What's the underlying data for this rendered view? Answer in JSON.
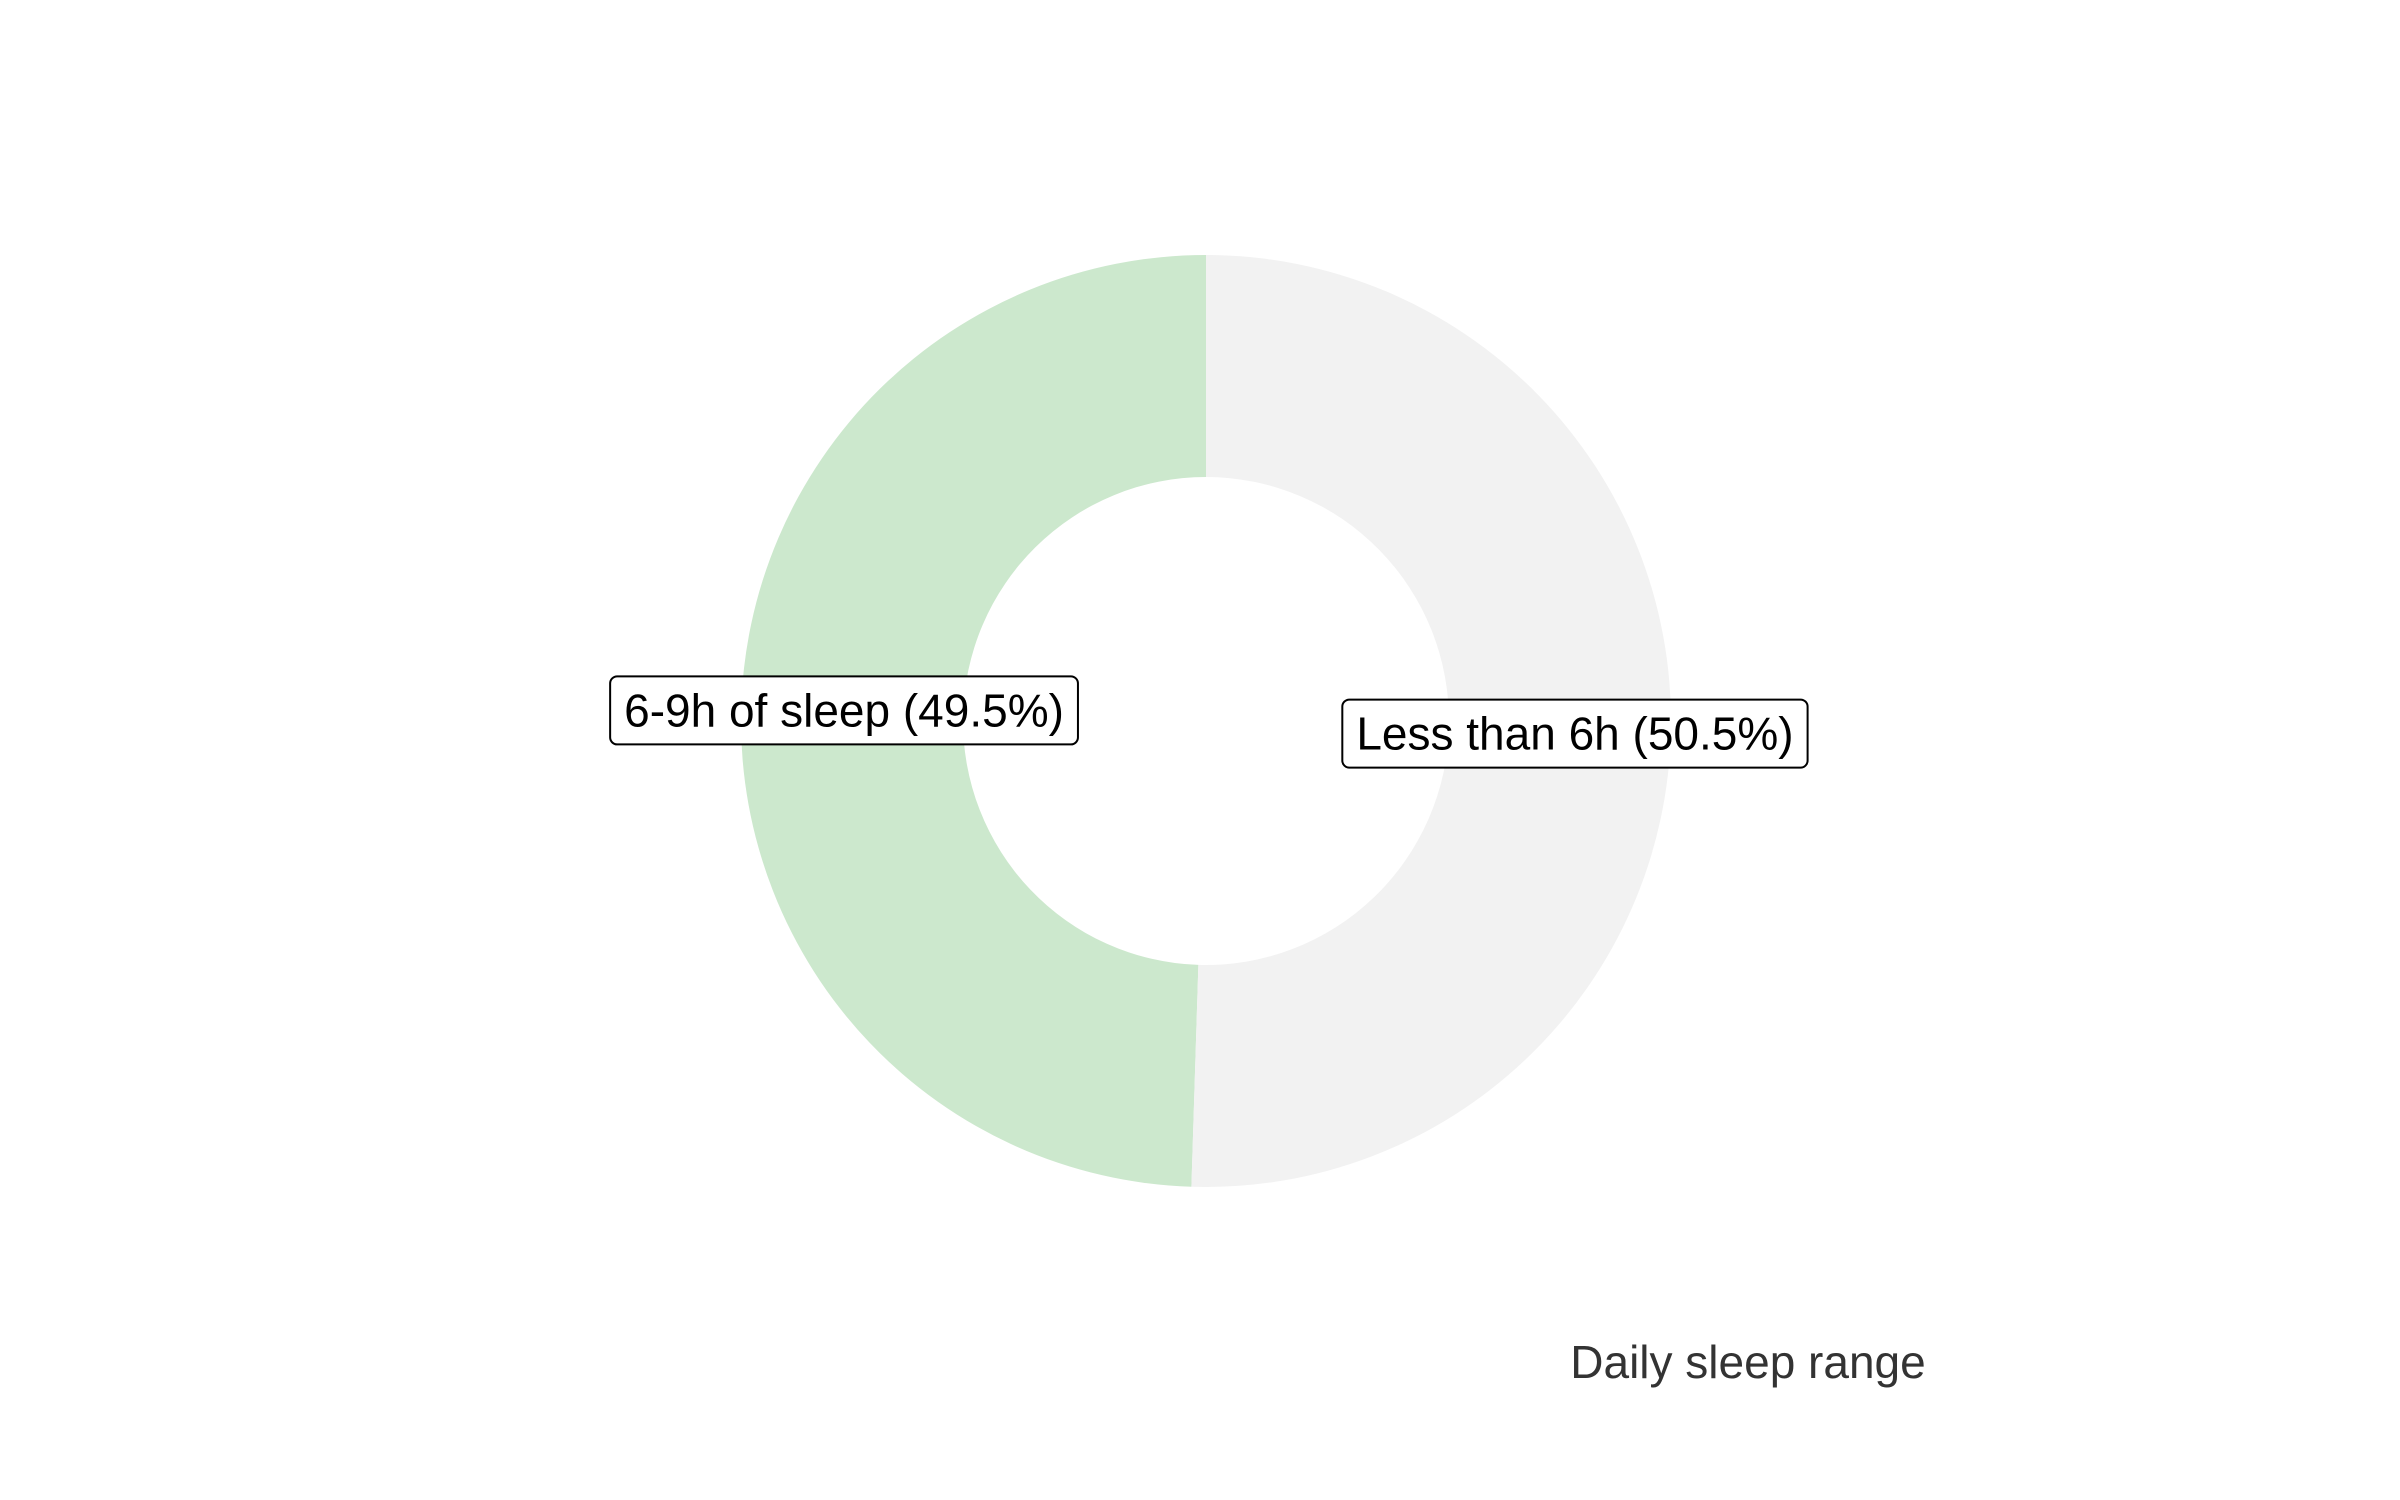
{
  "chart_data": {
    "type": "pie",
    "style": "donut",
    "caption": "Daily sleep range",
    "slices": [
      {
        "label": "6-9h of sleep (49.5%)",
        "category": "6-9h of sleep",
        "value": 49.5,
        "color": "#cce8cd"
      },
      {
        "label": "Less than 6h (50.5%)",
        "category": "Less than 6h",
        "value": 50.5,
        "color": "#f2f2f2"
      }
    ],
    "label_box_border": "#000000",
    "label_box_fill": "#ffffff"
  }
}
